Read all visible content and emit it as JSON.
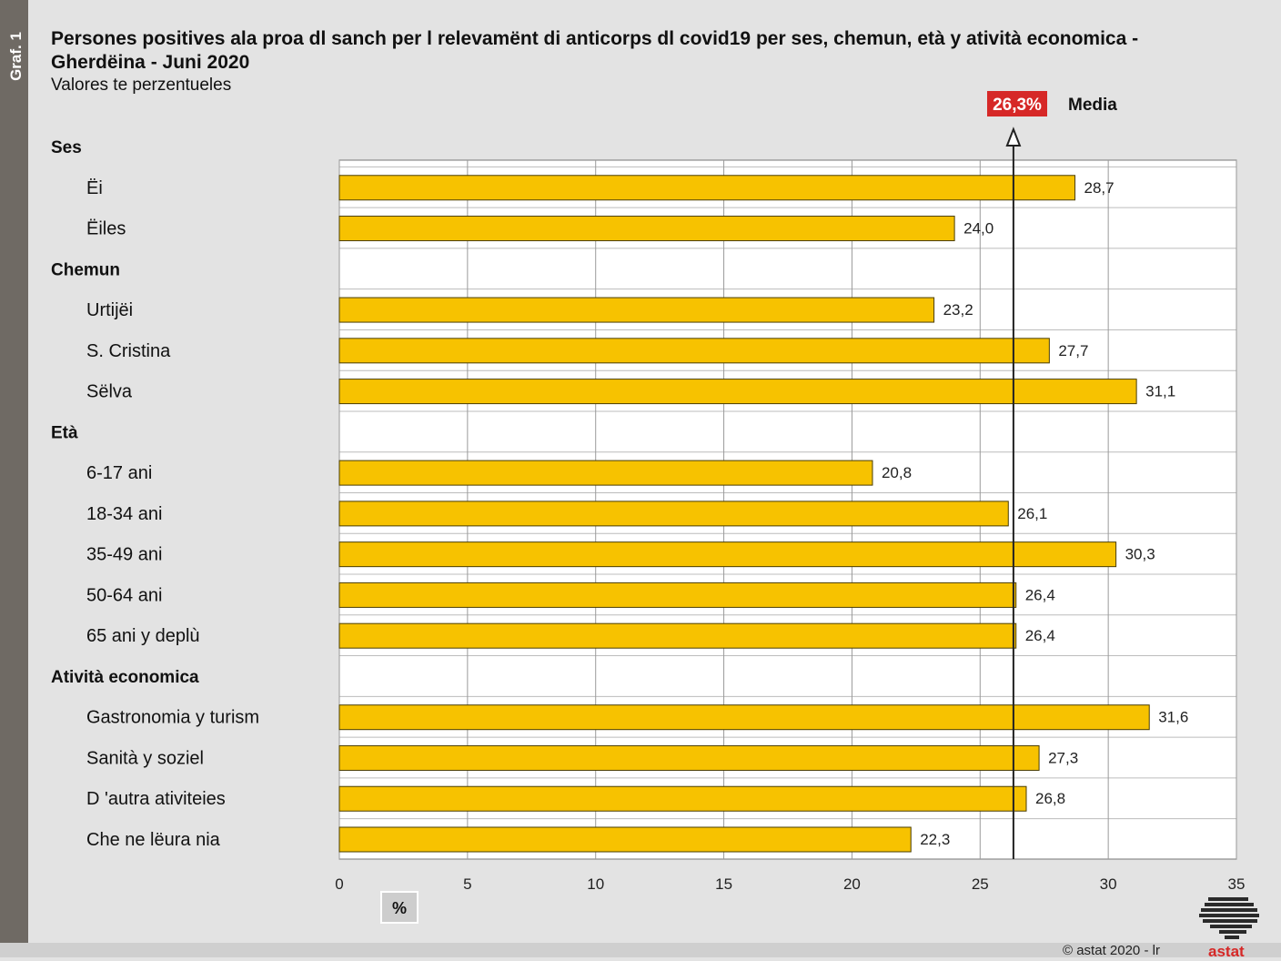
{
  "sidebar": {
    "label": "Graf. 1"
  },
  "header": {
    "title": "Persones positives ala proa dl sanch per l relevamënt di anticorps dl covid19 per ses, chemun, età y atività economica - Gherdëina - Juni 2020",
    "subtitle": "Valores te perzentueles"
  },
  "footer": {
    "copyright": "© astat 2020 - lr",
    "logo_text": "astat"
  },
  "colors": {
    "bar": "#f7c200",
    "bar_border": "#4a3d00",
    "grid": "#9a9a9a",
    "mean_badge": "#d62827",
    "background": "#e3e3e3",
    "plot_background": "#ffffff"
  },
  "chart_data": {
    "type": "bar",
    "orientation": "horizontal",
    "title": "Persones positives ala proa dl sanch per l relevamënt di anticorps dl covid19 per ses, chemun, età y atività economica - Gherdëina - Juni 2020",
    "subtitle": "Valores te perzentueles",
    "xlabel": "%",
    "xlim": [
      0,
      35
    ],
    "xticks": [
      0,
      5,
      10,
      15,
      20,
      25,
      30,
      35
    ],
    "grid": true,
    "mean": {
      "value": 26.3,
      "label": "26,3%",
      "text": "Media"
    },
    "groups": [
      {
        "name": "Ses",
        "items": [
          {
            "label": "Ëi",
            "value": 28.7,
            "value_label": "28,7"
          },
          {
            "label": "Ëiles",
            "value": 24.0,
            "value_label": "24,0"
          }
        ]
      },
      {
        "name": "Chemun",
        "items": [
          {
            "label": "Urtijëi",
            "value": 23.2,
            "value_label": "23,2"
          },
          {
            "label": "S. Cristina",
            "value": 27.7,
            "value_label": "27,7"
          },
          {
            "label": "Sëlva",
            "value": 31.1,
            "value_label": "31,1"
          }
        ]
      },
      {
        "name": "Età",
        "items": [
          {
            "label": "6-17 ani",
            "value": 20.8,
            "value_label": "20,8"
          },
          {
            "label": "18-34 ani",
            "value": 26.1,
            "value_label": "26,1"
          },
          {
            "label": "35-49 ani",
            "value": 30.3,
            "value_label": "30,3"
          },
          {
            "label": "50-64 ani",
            "value": 26.4,
            "value_label": "26,4"
          },
          {
            "label": "65 ani y deplù",
            "value": 26.4,
            "value_label": "26,4"
          }
        ]
      },
      {
        "name": "Atività economica",
        "items": [
          {
            "label": "Gastronomia y turism",
            "value": 31.6,
            "value_label": "31,6"
          },
          {
            "label": "Sanità y soziel",
            "value": 27.3,
            "value_label": "27,3"
          },
          {
            "label": "D 'autra ativiteies",
            "value": 26.8,
            "value_label": "26,8"
          },
          {
            "label": "Che ne lëura nia",
            "value": 22.3,
            "value_label": "22,3"
          }
        ]
      }
    ]
  }
}
